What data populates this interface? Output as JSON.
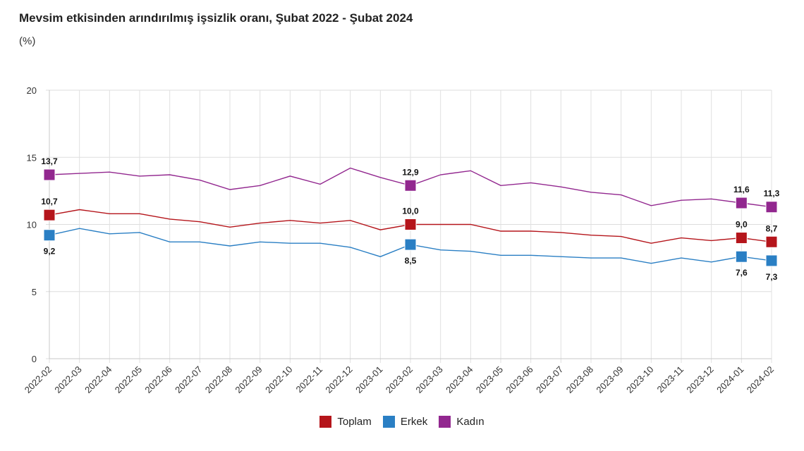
{
  "chart_data": {
    "type": "line",
    "title": "Mevsim etkisinden arındırılmış işsizlik oranı, Şubat 2022 - Şubat 2024",
    "subtitle": "(%)",
    "ylim": [
      0,
      20
    ],
    "yticks": [
      "0",
      "5",
      "10",
      "15",
      "20"
    ],
    "x": [
      "2022-02",
      "2022-03",
      "2022-04",
      "2022-05",
      "2022-06",
      "2022-07",
      "2022-08",
      "2022-09",
      "2022-10",
      "2022-11",
      "2022-12",
      "2023-01",
      "2023-02",
      "2023-03",
      "2023-04",
      "2023-05",
      "2023-06",
      "2023-07",
      "2023-08",
      "2023-09",
      "2023-10",
      "2023-11",
      "2023-12",
      "2024-01",
      "2024-02"
    ],
    "grid": true,
    "legend_position": "bottom-center",
    "series": [
      {
        "name": "Toplam",
        "color": "#b5151b",
        "values": [
          10.7,
          11.1,
          10.8,
          10.8,
          10.4,
          10.2,
          9.8,
          10.1,
          10.3,
          10.1,
          10.3,
          9.6,
          10.0,
          10.0,
          10.0,
          9.5,
          9.5,
          9.4,
          9.2,
          9.1,
          8.6,
          9.0,
          8.8,
          9.0,
          8.7
        ]
      },
      {
        "name": "Erkek",
        "color": "#2a7fc4",
        "values": [
          9.2,
          9.7,
          9.3,
          9.4,
          8.7,
          8.7,
          8.4,
          8.7,
          8.6,
          8.6,
          8.3,
          7.6,
          8.5,
          8.1,
          8.0,
          7.7,
          7.7,
          7.6,
          7.5,
          7.5,
          7.1,
          7.5,
          7.2,
          7.6,
          7.3
        ]
      },
      {
        "name": "Kadın",
        "color": "#92278f",
        "values": [
          13.7,
          13.8,
          13.9,
          13.6,
          13.7,
          13.3,
          12.6,
          12.9,
          13.6,
          13.0,
          14.2,
          13.5,
          12.9,
          13.7,
          14.0,
          12.9,
          13.1,
          12.8,
          12.4,
          12.2,
          11.4,
          11.8,
          11.9,
          11.6,
          11.3
        ]
      }
    ],
    "data_labels": [
      {
        "series": 2,
        "index": 0,
        "text": "13,7",
        "pos": "above"
      },
      {
        "series": 0,
        "index": 0,
        "text": "10,7",
        "pos": "above"
      },
      {
        "series": 1,
        "index": 0,
        "text": "9,2",
        "pos": "below"
      },
      {
        "series": 2,
        "index": 12,
        "text": "12,9",
        "pos": "above"
      },
      {
        "series": 0,
        "index": 12,
        "text": "10,0",
        "pos": "above"
      },
      {
        "series": 1,
        "index": 12,
        "text": "8,5",
        "pos": "below"
      },
      {
        "series": 2,
        "index": 23,
        "text": "11,6",
        "pos": "above"
      },
      {
        "series": 0,
        "index": 23,
        "text": "9,0",
        "pos": "above"
      },
      {
        "series": 1,
        "index": 23,
        "text": "7,6",
        "pos": "below"
      },
      {
        "series": 2,
        "index": 24,
        "text": "11,3",
        "pos": "above"
      },
      {
        "series": 0,
        "index": 24,
        "text": "8,7",
        "pos": "above"
      },
      {
        "series": 1,
        "index": 24,
        "text": "7,3",
        "pos": "below"
      }
    ]
  }
}
